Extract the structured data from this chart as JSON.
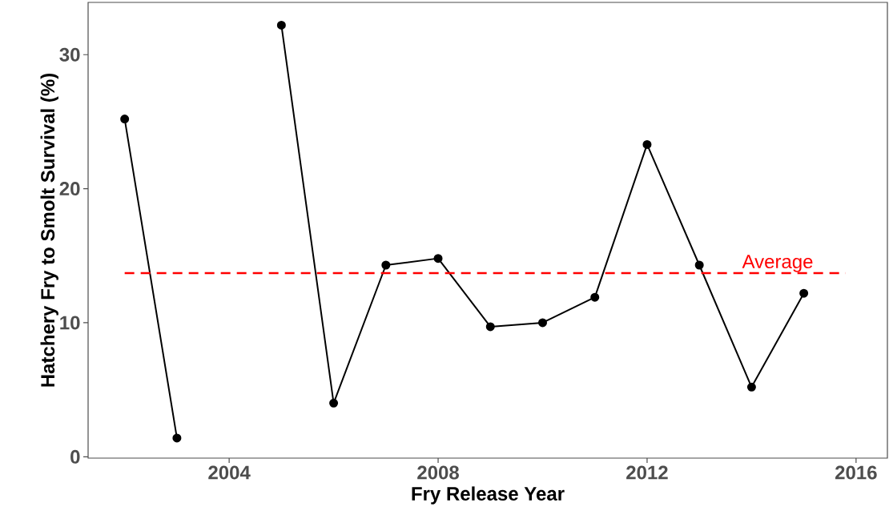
{
  "chart_data": {
    "type": "line",
    "xlabel": "Fry Release Year",
    "ylabel": "Hatchery Fry to Smolt Survival (%)",
    "x": [
      2002,
      2003,
      2004,
      2005,
      2006,
      2007,
      2008,
      2009,
      2010,
      2011,
      2012,
      2013,
      2014,
      2015
    ],
    "series": [
      {
        "color": "#000000",
        "values": [
          25.2,
          1.4,
          null,
          32.2,
          4.0,
          14.3,
          14.8,
          9.7,
          10.0,
          11.9,
          23.3,
          14.3,
          5.2,
          12.2
        ]
      }
    ],
    "marker": "circle",
    "line_style": "solid",
    "xlim": [
      2001.3,
      2016.6
    ],
    "ylim": [
      -0.1,
      33.9
    ],
    "xticks": [
      2004,
      2008,
      2012,
      2016
    ],
    "yticks": [
      0,
      10,
      20,
      30
    ],
    "ref_lines": [
      {
        "axis": "y",
        "value": 13.7,
        "label": "Average",
        "color": "#ff0000",
        "line_style": "dashed"
      }
    ]
  }
}
